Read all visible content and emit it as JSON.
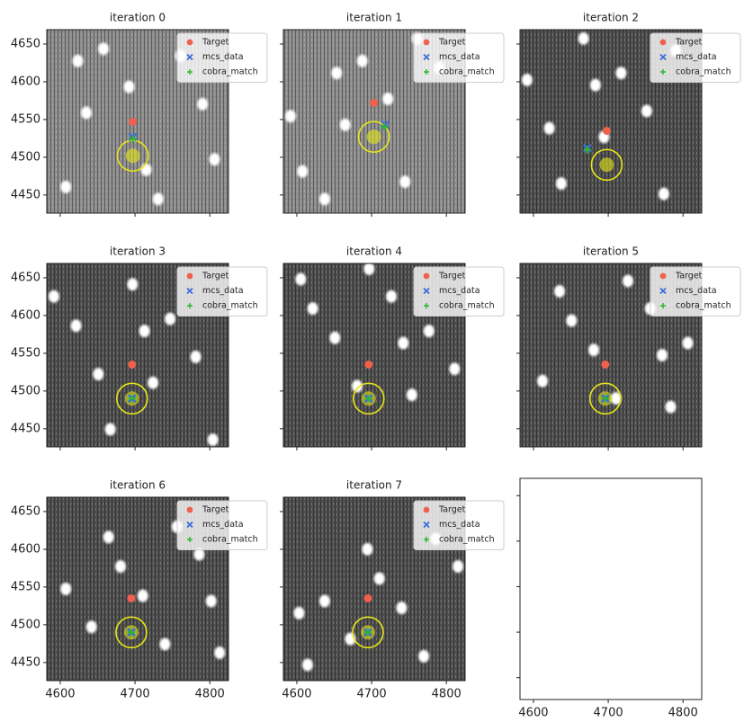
{
  "chart_data": [
    {
      "type": "scatter",
      "title": "iteration 0",
      "background": "#8e8e8e",
      "xlim": [
        4582,
        4825
      ],
      "ylim": [
        4426,
        4669
      ],
      "xticks": [
        4600,
        4700,
        4800
      ],
      "yticks": [
        4450,
        4500,
        4550,
        4600,
        4650
      ],
      "legend": "upper right",
      "series": [
        {
          "name": "Target",
          "color": "#f0604c",
          "marker": "o",
          "x": [
            4697
          ],
          "values": [
            4547
          ]
        },
        {
          "name": "mcs_data",
          "color": "#3d6fd8",
          "marker": "x",
          "x": [
            4697
          ],
          "values": [
            4527
          ]
        },
        {
          "name": "cobra_match",
          "color": "#2db82d",
          "marker": "+",
          "x": [
            4697
          ],
          "values": [
            4524
          ]
        },
        {
          "color": "#e6e619",
          "marker": "ring",
          "x": [
            4697
          ],
          "values": [
            4502
          ]
        }
      ]
    },
    {
      "type": "scatter",
      "title": "iteration 1",
      "background": "#8e8e8e",
      "xlim": [
        4582,
        4825
      ],
      "ylim": [
        4426,
        4669
      ],
      "xticks": [
        4600,
        4700,
        4800
      ],
      "yticks": [
        4450,
        4500,
        4550,
        4600,
        4650
      ],
      "legend": "upper right",
      "series": [
        {
          "name": "Target",
          "color": "#f0604c",
          "marker": "o",
          "x": [
            4703
          ],
          "values": [
            4572
          ]
        },
        {
          "name": "mcs_data",
          "color": "#3d6fd8",
          "marker": "x",
          "x": [
            4718
          ],
          "values": [
            4543
          ]
        },
        {
          "name": "cobra_match",
          "color": "#2db82d",
          "marker": "+",
          "x": [
            4717
          ],
          "values": [
            4540
          ]
        },
        {
          "color": "#e6e619",
          "marker": "ring",
          "x": [
            4703
          ],
          "values": [
            4527
          ]
        }
      ]
    },
    {
      "type": "scatter",
      "title": "iteration 2",
      "background": "#505050",
      "xlim": [
        4582,
        4825
      ],
      "ylim": [
        4426,
        4669
      ],
      "xticks": [
        4600,
        4700,
        4800
      ],
      "yticks": [
        4450,
        4500,
        4550,
        4600,
        4650
      ],
      "legend": "upper right",
      "series": [
        {
          "name": "Target",
          "color": "#f0604c",
          "marker": "o",
          "x": [
            4698
          ],
          "values": [
            4535
          ]
        },
        {
          "name": "mcs_data",
          "color": "#3d6fd8",
          "marker": "x",
          "x": [
            4672
          ],
          "values": [
            4512
          ]
        },
        {
          "name": "cobra_match",
          "color": "#2db82d",
          "marker": "+",
          "x": [
            4672
          ],
          "values": [
            4510
          ]
        },
        {
          "color": "#e6e619",
          "marker": "ring",
          "x": [
            4698
          ],
          "values": [
            4490
          ]
        }
      ]
    },
    {
      "type": "scatter",
      "title": "iteration 3",
      "background": "#505050",
      "xlim": [
        4582,
        4825
      ],
      "ylim": [
        4426,
        4669
      ],
      "xticks": [
        4600,
        4700,
        4800
      ],
      "yticks": [
        4450,
        4500,
        4550,
        4600,
        4650
      ],
      "legend": "upper right",
      "series": [
        {
          "name": "Target",
          "color": "#f0604c",
          "marker": "o",
          "x": [
            4696
          ],
          "values": [
            4535
          ]
        },
        {
          "name": "mcs_data",
          "color": "#3d6fd8",
          "marker": "x",
          "x": [
            4696
          ],
          "values": [
            4490
          ]
        },
        {
          "name": "cobra_match",
          "color": "#2db82d",
          "marker": "+",
          "x": [
            4696
          ],
          "values": [
            4490
          ]
        },
        {
          "color": "#e6e619",
          "marker": "ring",
          "x": [
            4696
          ],
          "values": [
            4490
          ]
        }
      ]
    },
    {
      "type": "scatter",
      "title": "iteration 4",
      "background": "#505050",
      "xlim": [
        4582,
        4825
      ],
      "ylim": [
        4426,
        4669
      ],
      "xticks": [
        4600,
        4700,
        4800
      ],
      "yticks": [
        4450,
        4500,
        4550,
        4600,
        4650
      ],
      "legend": "upper right",
      "series": [
        {
          "name": "Target",
          "color": "#f0604c",
          "marker": "o",
          "x": [
            4696
          ],
          "values": [
            4535
          ]
        },
        {
          "name": "mcs_data",
          "color": "#3d6fd8",
          "marker": "x",
          "x": [
            4696
          ],
          "values": [
            4490
          ]
        },
        {
          "name": "cobra_match",
          "color": "#2db82d",
          "marker": "+",
          "x": [
            4696
          ],
          "values": [
            4490
          ]
        },
        {
          "color": "#e6e619",
          "marker": "ring",
          "x": [
            4696
          ],
          "values": [
            4490
          ]
        }
      ]
    },
    {
      "type": "scatter",
      "title": "iteration 5",
      "background": "#505050",
      "xlim": [
        4582,
        4825
      ],
      "ylim": [
        4426,
        4669
      ],
      "xticks": [
        4600,
        4700,
        4800
      ],
      "yticks": [
        4450,
        4500,
        4550,
        4600,
        4650
      ],
      "legend": "upper right",
      "series": [
        {
          "name": "Target",
          "color": "#f0604c",
          "marker": "o",
          "x": [
            4696
          ],
          "values": [
            4535
          ]
        },
        {
          "name": "mcs_data",
          "color": "#3d6fd8",
          "marker": "x",
          "x": [
            4696
          ],
          "values": [
            4490
          ]
        },
        {
          "name": "cobra_match",
          "color": "#2db82d",
          "marker": "+",
          "x": [
            4696
          ],
          "values": [
            4490
          ]
        },
        {
          "color": "#e6e619",
          "marker": "ring",
          "x": [
            4696
          ],
          "values": [
            4490
          ]
        }
      ]
    },
    {
      "type": "scatter",
      "title": "iteration 6",
      "background": "#505050",
      "xlim": [
        4582,
        4825
      ],
      "ylim": [
        4426,
        4669
      ],
      "xticks": [
        4600,
        4700,
        4800
      ],
      "yticks": [
        4450,
        4500,
        4550,
        4600,
        4650
      ],
      "legend": "upper right",
      "series": [
        {
          "name": "Target",
          "color": "#f0604c",
          "marker": "o",
          "x": [
            4695
          ],
          "values": [
            4535
          ]
        },
        {
          "name": "mcs_data",
          "color": "#3d6fd8",
          "marker": "x",
          "x": [
            4695
          ],
          "values": [
            4490
          ]
        },
        {
          "name": "cobra_match",
          "color": "#2db82d",
          "marker": "+",
          "x": [
            4695
          ],
          "values": [
            4490
          ]
        },
        {
          "color": "#e6e619",
          "marker": "ring",
          "x": [
            4695
          ],
          "values": [
            4490
          ]
        }
      ]
    },
    {
      "type": "scatter",
      "title": "iteration 7",
      "background": "#505050",
      "xlim": [
        4582,
        4825
      ],
      "ylim": [
        4426,
        4669
      ],
      "xticks": [
        4600,
        4700,
        4800
      ],
      "yticks": [
        4450,
        4500,
        4550,
        4600,
        4650
      ],
      "legend": "upper right",
      "series": [
        {
          "name": "Target",
          "color": "#f0604c",
          "marker": "o",
          "x": [
            4695
          ],
          "values": [
            4535
          ]
        },
        {
          "name": "mcs_data",
          "color": "#3d6fd8",
          "marker": "x",
          "x": [
            4695
          ],
          "values": [
            4490
          ]
        },
        {
          "name": "cobra_match",
          "color": "#2db82d",
          "marker": "+",
          "x": [
            4695
          ],
          "values": [
            4490
          ]
        },
        {
          "color": "#e6e619",
          "marker": "ring",
          "x": [
            4695
          ],
          "values": [
            4490
          ]
        }
      ]
    },
    {
      "type": "scatter",
      "xlim": [
        4582,
        4825
      ],
      "ylim": [
        4426,
        4669
      ],
      "xticks": [
        4600,
        4700,
        4800
      ],
      "yticks": [
        4450,
        4500,
        4550,
        4600,
        4650
      ]
    }
  ]
}
